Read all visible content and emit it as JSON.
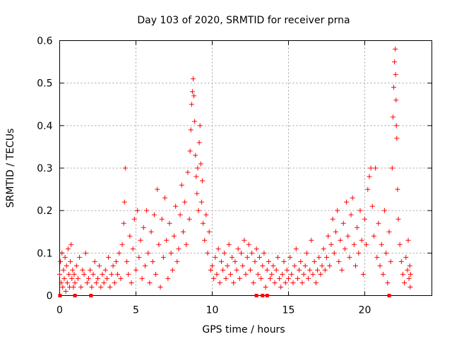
{
  "chart_data": {
    "type": "scatter",
    "title": "Day 103 of 2020, SRMTID for receiver prna",
    "xlabel": "GPS time / hours",
    "ylabel": "SRMTID / TECUs",
    "xlim": [
      0,
      24.4
    ],
    "ylim": [
      0,
      0.6
    ],
    "x_ticks": [
      0,
      5,
      10,
      15,
      20
    ],
    "y_ticks": [
      0,
      0.1,
      0.2,
      0.3,
      0.4,
      0.5,
      0.6
    ],
    "x_tick_labels": [
      "0",
      "5",
      "10",
      "15",
      "20"
    ],
    "y_tick_labels": [
      "0",
      "0.1",
      "0.2",
      "0.3",
      "0.4",
      "0.5",
      "0.6"
    ],
    "grid": true,
    "marker": "+",
    "color": "#ff0000",
    "series": [
      {
        "name": "SRMTID",
        "points": [
          [
            0.0,
            0.05
          ],
          [
            0.05,
            0.08
          ],
          [
            0.1,
            0.03
          ],
          [
            0.15,
            0.1
          ],
          [
            0.2,
            0.02
          ],
          [
            0.25,
            0.06
          ],
          [
            0.3,
            0.04
          ],
          [
            0.35,
            0.09
          ],
          [
            0.4,
            0.01
          ],
          [
            0.45,
            0.07
          ],
          [
            0.5,
            0.03
          ],
          [
            0.55,
            0.11
          ],
          [
            0.6,
            0.05
          ],
          [
            0.65,
            0.02
          ],
          [
            0.7,
            0.08
          ],
          [
            0.75,
            0.12
          ],
          [
            0.8,
            0.04
          ],
          [
            0.85,
            0.06
          ],
          [
            0.9,
            0.02
          ],
          [
            0.95,
            0.05
          ],
          [
            1.0,
            0.03
          ],
          [
            1.1,
            0.07
          ],
          [
            1.2,
            0.04
          ],
          [
            1.3,
            0.09
          ],
          [
            1.4,
            0.02
          ],
          [
            1.5,
            0.06
          ],
          [
            1.6,
            0.05
          ],
          [
            1.7,
            0.1
          ],
          [
            1.8,
            0.03
          ],
          [
            1.9,
            0.04
          ],
          [
            2.0,
            0.06
          ],
          [
            2.1,
            0.02
          ],
          [
            2.2,
            0.05
          ],
          [
            2.3,
            0.08
          ],
          [
            2.4,
            0.03
          ],
          [
            2.5,
            0.04
          ],
          [
            2.6,
            0.07
          ],
          [
            2.7,
            0.02
          ],
          [
            2.8,
            0.05
          ],
          [
            2.9,
            0.03
          ],
          [
            3.0,
            0.06
          ],
          [
            3.1,
            0.04
          ],
          [
            3.2,
            0.09
          ],
          [
            3.3,
            0.02
          ],
          [
            3.4,
            0.05
          ],
          [
            3.5,
            0.07
          ],
          [
            3.6,
            0.03
          ],
          [
            3.7,
            0.08
          ],
          [
            3.8,
            0.05
          ],
          [
            3.9,
            0.1
          ],
          [
            4.0,
            0.04
          ],
          [
            4.1,
            0.12
          ],
          [
            4.2,
            0.17
          ],
          [
            4.25,
            0.22
          ],
          [
            4.3,
            0.3
          ],
          [
            4.4,
            0.08
          ],
          [
            4.5,
            0.05
          ],
          [
            4.6,
            0.14
          ],
          [
            4.7,
            0.03
          ],
          [
            4.8,
            0.11
          ],
          [
            4.9,
            0.18
          ],
          [
            5.0,
            0.06
          ],
          [
            5.1,
            0.2
          ],
          [
            5.2,
            0.09
          ],
          [
            5.3,
            0.13
          ],
          [
            5.4,
            0.04
          ],
          [
            5.5,
            0.16
          ],
          [
            5.6,
            0.07
          ],
          [
            5.7,
            0.2
          ],
          [
            5.8,
            0.1
          ],
          [
            5.9,
            0.03
          ],
          [
            6.0,
            0.15
          ],
          [
            6.1,
            0.08
          ],
          [
            6.2,
            0.19
          ],
          [
            6.3,
            0.05
          ],
          [
            6.4,
            0.25
          ],
          [
            6.5,
            0.12
          ],
          [
            6.6,
            0.02
          ],
          [
            6.7,
            0.18
          ],
          [
            6.8,
            0.09
          ],
          [
            6.9,
            0.23
          ],
          [
            7.0,
            0.13
          ],
          [
            7.1,
            0.04
          ],
          [
            7.2,
            0.17
          ],
          [
            7.3,
            0.1
          ],
          [
            7.4,
            0.06
          ],
          [
            7.5,
            0.14
          ],
          [
            7.6,
            0.21
          ],
          [
            7.7,
            0.08
          ],
          [
            7.8,
            0.11
          ],
          [
            7.9,
            0.19
          ],
          [
            8.0,
            0.26
          ],
          [
            8.1,
            0.15
          ],
          [
            8.2,
            0.22
          ],
          [
            8.3,
            0.12
          ],
          [
            8.4,
            0.29
          ],
          [
            8.5,
            0.18
          ],
          [
            8.55,
            0.34
          ],
          [
            8.6,
            0.39
          ],
          [
            8.65,
            0.45
          ],
          [
            8.7,
            0.48
          ],
          [
            8.75,
            0.51
          ],
          [
            8.8,
            0.47
          ],
          [
            8.85,
            0.41
          ],
          [
            8.9,
            0.33
          ],
          [
            8.95,
            0.28
          ],
          [
            9.0,
            0.24
          ],
          [
            9.05,
            0.3
          ],
          [
            9.1,
            0.2
          ],
          [
            9.15,
            0.36
          ],
          [
            9.2,
            0.4
          ],
          [
            9.25,
            0.31
          ],
          [
            9.3,
            0.22
          ],
          [
            9.35,
            0.27
          ],
          [
            9.4,
            0.17
          ],
          [
            9.5,
            0.13
          ],
          [
            9.6,
            0.19
          ],
          [
            9.7,
            0.1
          ],
          [
            9.8,
            0.15
          ],
          [
            9.9,
            0.06
          ],
          [
            10.0,
            0.07
          ],
          [
            10.1,
            0.04
          ],
          [
            10.2,
            0.09
          ],
          [
            10.3,
            0.05
          ],
          [
            10.4,
            0.11
          ],
          [
            10.5,
            0.03
          ],
          [
            10.6,
            0.08
          ],
          [
            10.7,
            0.06
          ],
          [
            10.8,
            0.1
          ],
          [
            10.9,
            0.04
          ],
          [
            11.0,
            0.07
          ],
          [
            11.1,
            0.12
          ],
          [
            11.2,
            0.05
          ],
          [
            11.3,
            0.09
          ],
          [
            11.4,
            0.03
          ],
          [
            11.5,
            0.08
          ],
          [
            11.6,
            0.06
          ],
          [
            11.7,
            0.11
          ],
          [
            11.8,
            0.04
          ],
          [
            11.9,
            0.1
          ],
          [
            12.0,
            0.07
          ],
          [
            12.1,
            0.13
          ],
          [
            12.2,
            0.05
          ],
          [
            12.3,
            0.09
          ],
          [
            12.4,
            0.12
          ],
          [
            12.5,
            0.06
          ],
          [
            12.6,
            0.1
          ],
          [
            12.7,
            0.03
          ],
          [
            12.8,
            0.08
          ],
          [
            12.9,
            0.11
          ],
          [
            13.0,
            0.05
          ],
          [
            13.1,
            0.09
          ],
          [
            13.2,
            0.04
          ],
          [
            13.3,
            0.07
          ],
          [
            13.4,
            0.1
          ],
          [
            13.5,
            0.02
          ],
          [
            13.6,
            0.06
          ],
          [
            13.7,
            0.08
          ],
          [
            13.8,
            0.04
          ],
          [
            13.9,
            0.05
          ],
          [
            14.0,
            0.07
          ],
          [
            14.1,
            0.03
          ],
          [
            14.2,
            0.06
          ],
          [
            14.3,
            0.09
          ],
          [
            14.4,
            0.04
          ],
          [
            14.5,
            0.02
          ],
          [
            14.6,
            0.05
          ],
          [
            14.7,
            0.08
          ],
          [
            14.8,
            0.03
          ],
          [
            14.9,
            0.06
          ],
          [
            15.0,
            0.04
          ],
          [
            15.1,
            0.09
          ],
          [
            15.2,
            0.05
          ],
          [
            15.3,
            0.03
          ],
          [
            15.4,
            0.07
          ],
          [
            15.5,
            0.11
          ],
          [
            15.6,
            0.04
          ],
          [
            15.7,
            0.06
          ],
          [
            15.8,
            0.08
          ],
          [
            15.9,
            0.03
          ],
          [
            16.0,
            0.05
          ],
          [
            16.1,
            0.07
          ],
          [
            16.2,
            0.1
          ],
          [
            16.3,
            0.04
          ],
          [
            16.4,
            0.06
          ],
          [
            16.5,
            0.13
          ],
          [
            16.6,
            0.05
          ],
          [
            16.7,
            0.08
          ],
          [
            16.8,
            0.03
          ],
          [
            16.9,
            0.06
          ],
          [
            17.0,
            0.09
          ],
          [
            17.1,
            0.05
          ],
          [
            17.2,
            0.07
          ],
          [
            17.3,
            0.11
          ],
          [
            17.4,
            0.06
          ],
          [
            17.5,
            0.09
          ],
          [
            17.6,
            0.14
          ],
          [
            17.7,
            0.07
          ],
          [
            17.8,
            0.12
          ],
          [
            17.9,
            0.18
          ],
          [
            18.0,
            0.1
          ],
          [
            18.1,
            0.15
          ],
          [
            18.2,
            0.2
          ],
          [
            18.3,
            0.08
          ],
          [
            18.4,
            0.13
          ],
          [
            18.5,
            0.06
          ],
          [
            18.6,
            0.17
          ],
          [
            18.7,
            0.11
          ],
          [
            18.8,
            0.22
          ],
          [
            18.9,
            0.14
          ],
          [
            19.0,
            0.09
          ],
          [
            19.1,
            0.19
          ],
          [
            19.2,
            0.23
          ],
          [
            19.3,
            0.12
          ],
          [
            19.4,
            0.07
          ],
          [
            19.5,
            0.16
          ],
          [
            19.6,
            0.1
          ],
          [
            19.7,
            0.2
          ],
          [
            19.8,
            0.13
          ],
          [
            19.9,
            0.05
          ],
          [
            20.0,
            0.18
          ],
          [
            20.1,
            0.12
          ],
          [
            20.2,
            0.25
          ],
          [
            20.3,
            0.28
          ],
          [
            20.4,
            0.3
          ],
          [
            20.5,
            0.21
          ],
          [
            20.6,
            0.14
          ],
          [
            20.7,
            0.3
          ],
          [
            20.8,
            0.09
          ],
          [
            20.9,
            0.17
          ],
          [
            21.0,
            0.07
          ],
          [
            21.1,
            0.12
          ],
          [
            21.2,
            0.05
          ],
          [
            21.3,
            0.2
          ],
          [
            21.4,
            0.1
          ],
          [
            21.5,
            0.03
          ],
          [
            21.6,
            0.15
          ],
          [
            21.7,
            0.08
          ],
          [
            21.8,
            0.3
          ],
          [
            21.85,
            0.42
          ],
          [
            21.9,
            0.49
          ],
          [
            21.95,
            0.55
          ],
          [
            22.0,
            0.58
          ],
          [
            22.02,
            0.52
          ],
          [
            22.05,
            0.46
          ],
          [
            22.07,
            0.4
          ],
          [
            22.1,
            0.37
          ],
          [
            22.15,
            0.25
          ],
          [
            22.2,
            0.18
          ],
          [
            22.3,
            0.12
          ],
          [
            22.4,
            0.08
          ],
          [
            22.5,
            0.05
          ],
          [
            22.6,
            0.03
          ],
          [
            22.7,
            0.09
          ],
          [
            22.8,
            0.06
          ],
          [
            22.85,
            0.13
          ],
          [
            22.9,
            0.04
          ],
          [
            22.95,
            0.07
          ],
          [
            22.98,
            0.02
          ],
          [
            23.0,
            0.05
          ],
          [
            0.02,
            0.0
          ],
          [
            1.0,
            0.0
          ],
          [
            2.05,
            0.0
          ],
          [
            12.9,
            0.0
          ],
          [
            13.3,
            0.0
          ],
          [
            13.6,
            0.0
          ],
          [
            21.6,
            0.0
          ]
        ]
      }
    ]
  }
}
